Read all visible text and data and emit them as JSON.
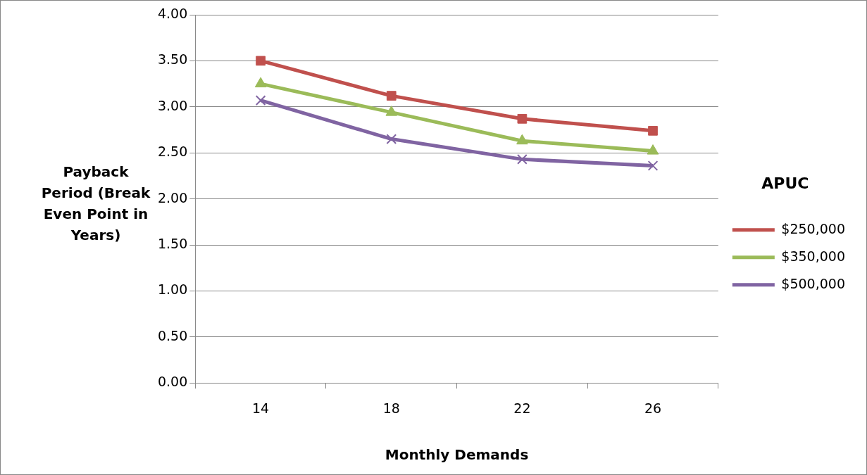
{
  "chart_data": {
    "type": "line",
    "xlabel": "Monthly Demands",
    "ylabel": "Payback Period (Break Even Point in Years)",
    "legend_title": "APUC",
    "categories": [
      "14",
      "18",
      "22",
      "26"
    ],
    "series": [
      {
        "name": "$250,000",
        "color": "#c0504d",
        "marker": "square",
        "values": [
          3.5,
          3.12,
          2.87,
          2.74
        ]
      },
      {
        "name": "$350,000",
        "color": "#9bbb59",
        "marker": "triangle",
        "values": [
          3.25,
          2.94,
          2.63,
          2.52
        ]
      },
      {
        "name": "$500,000",
        "color": "#8064a2",
        "marker": "cross",
        "values": [
          3.07,
          2.65,
          2.43,
          2.36
        ]
      }
    ],
    "ylim": [
      0,
      4
    ],
    "yticks": [
      {
        "value": 0,
        "label": "0.00"
      },
      {
        "value": 0.5,
        "label": "0.50"
      },
      {
        "value": 1,
        "label": "1.00"
      },
      {
        "value": 1.5,
        "label": "1.50"
      },
      {
        "value": 2,
        "label": "2.00"
      },
      {
        "value": 2.5,
        "label": "2.50"
      },
      {
        "value": 3,
        "label": "3.00"
      },
      {
        "value": 3.5,
        "label": "3.50"
      },
      {
        "value": 4,
        "label": "4.00"
      }
    ],
    "grid": "y",
    "legend": "right",
    "line_style": "solid"
  }
}
